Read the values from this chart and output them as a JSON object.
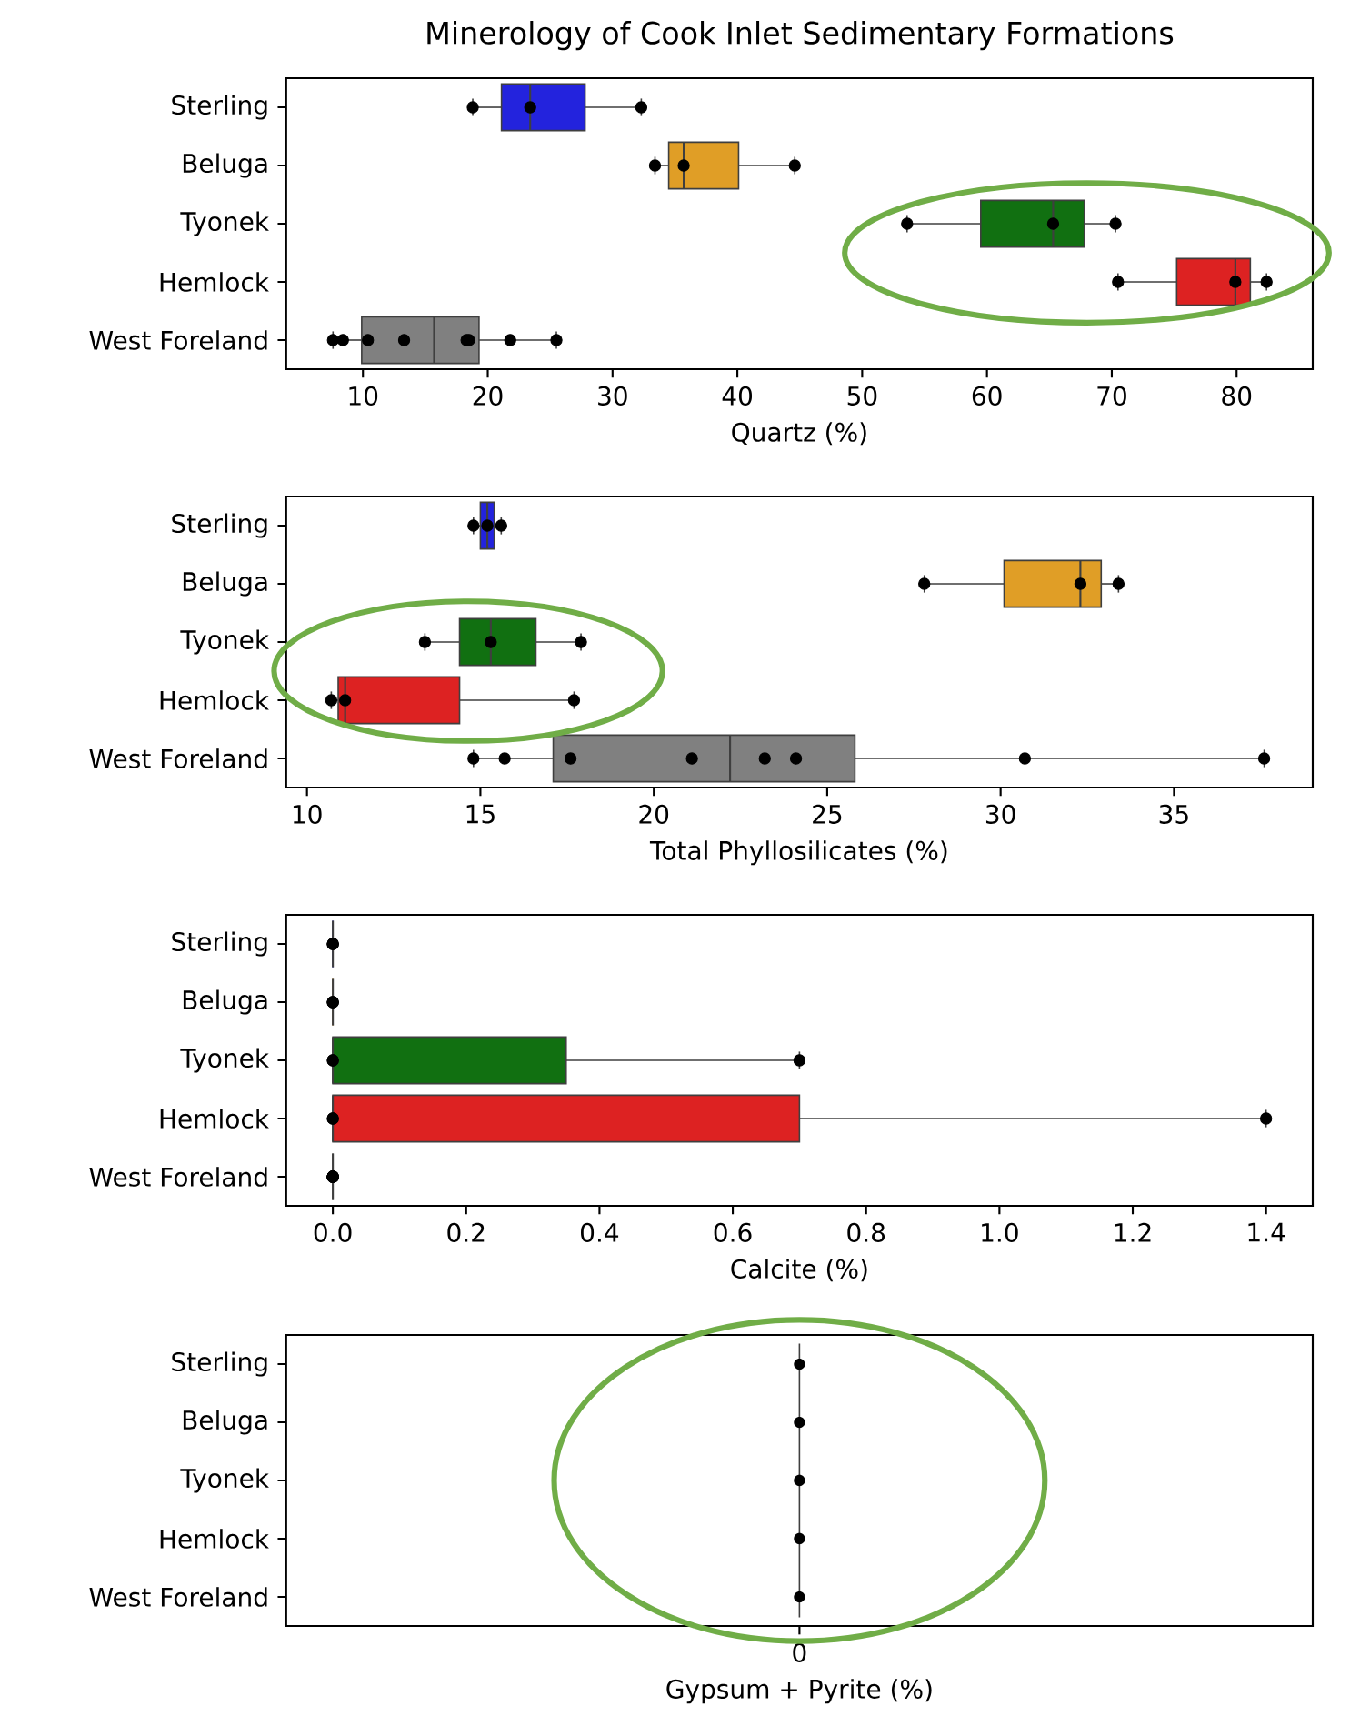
{
  "chart_data": [
    {
      "type": "box",
      "title": "Minerology of Cook Inlet Sedimentary Formations",
      "xlabel": "Quartz (%)",
      "orientation": "horizontal",
      "categories": [
        "Sterling",
        "Beluga",
        "Tyonek",
        "Hemlock",
        "West Foreland"
      ],
      "xlim": [
        3.85,
        86.1
      ],
      "xticks": [
        10,
        20,
        30,
        40,
        50,
        60,
        70,
        80
      ],
      "series": [
        {
          "colors": [
            "#2323dd",
            "#e09e26",
            "#117011",
            "#dd2222",
            "#808080"
          ],
          "boxes": [
            {
              "low": 18.8,
              "q1": 21.1,
              "median": 23.4,
              "q3": 27.8,
              "high": 32.3
            },
            {
              "low": 33.4,
              "q1": 34.5,
              "median": 35.7,
              "q3": 40.1,
              "high": 44.6
            },
            {
              "low": 53.6,
              "q1": 59.5,
              "median": 65.3,
              "q3": 67.8,
              "high": 70.3
            },
            {
              "low": 70.5,
              "q1": 75.2,
              "median": 79.9,
              "q3": 81.1,
              "high": 82.4
            },
            {
              "low": 7.6,
              "q1": 9.9,
              "median": 15.7,
              "q3": 19.3,
              "high": 25.5
            }
          ]
        },
        {
          "type": "scatter",
          "color": "#000000",
          "x": [
            "Sterling",
            "Sterling",
            "Sterling",
            "Beluga",
            "Beluga",
            "Beluga",
            "Tyonek",
            "Tyonek",
            "Tyonek",
            "Hemlock",
            "Hemlock",
            "Hemlock",
            "West Foreland",
            "West Foreland",
            "West Foreland",
            "West Foreland",
            "West Foreland",
            "West Foreland",
            "West Foreland",
            "West Foreland"
          ],
          "values": [
            18.8,
            23.4,
            32.3,
            33.4,
            35.7,
            44.6,
            53.6,
            65.3,
            70.3,
            70.5,
            79.9,
            82.4,
            7.6,
            8.4,
            10.4,
            13.3,
            18.3,
            18.5,
            21.8,
            25.5
          ]
        }
      ]
    },
    {
      "type": "box",
      "xlabel": "Total Phyllosilicates (%)",
      "orientation": "horizontal",
      "categories": [
        "Sterling",
        "Beluga",
        "Tyonek",
        "Hemlock",
        "West Foreland"
      ],
      "xlim": [
        9.4,
        39.0
      ],
      "xticks": [
        10,
        15,
        20,
        25,
        30,
        35
      ],
      "series": [
        {
          "colors": [
            "#2323dd",
            "#e09e26",
            "#117011",
            "#dd2222",
            "#808080"
          ],
          "boxes": [
            {
              "low": 14.8,
              "q1": 15.0,
              "median": 15.2,
              "q3": 15.4,
              "high": 15.6
            },
            {
              "low": 27.8,
              "q1": 30.1,
              "median": 32.3,
              "q3": 32.9,
              "high": 33.4
            },
            {
              "low": 13.4,
              "q1": 14.4,
              "median": 15.3,
              "q3": 16.6,
              "high": 17.9
            },
            {
              "low": 10.7,
              "q1": 10.9,
              "median": 11.1,
              "q3": 14.4,
              "high": 17.7
            },
            {
              "low": 14.8,
              "q1": 17.1,
              "median": 22.2,
              "q3": 25.8,
              "high": 37.6
            }
          ]
        },
        {
          "type": "scatter",
          "color": "#000000",
          "x": [
            "Sterling",
            "Sterling",
            "Sterling",
            "Beluga",
            "Beluga",
            "Beluga",
            "Tyonek",
            "Tyonek",
            "Tyonek",
            "Hemlock",
            "Hemlock",
            "Hemlock",
            "West Foreland",
            "West Foreland",
            "West Foreland",
            "West Foreland",
            "West Foreland",
            "West Foreland",
            "West Foreland",
            "West Foreland"
          ],
          "values": [
            14.8,
            15.2,
            15.6,
            27.8,
            32.3,
            33.4,
            13.4,
            15.3,
            17.9,
            10.7,
            11.1,
            17.7,
            14.8,
            15.7,
            17.6,
            21.1,
            23.2,
            24.1,
            30.7,
            37.6
          ]
        }
      ]
    },
    {
      "type": "box",
      "xlabel": "Calcite (%)",
      "orientation": "horizontal",
      "categories": [
        "Sterling",
        "Beluga",
        "Tyonek",
        "Hemlock",
        "West Foreland"
      ],
      "xlim": [
        -0.07,
        1.47
      ],
      "xticks": [
        {
          "value": 0,
          "label": "0.0"
        },
        0.2,
        0.4,
        0.6,
        0.8,
        {
          "value": 1,
          "label": "1.0"
        },
        1.2,
        1.4
      ],
      "series": [
        {
          "colors": [
            "#2323dd",
            "#e09e26",
            "#117011",
            "#dd2222",
            "#808080"
          ],
          "boxes": [
            {
              "low": 0,
              "q1": 0,
              "median": 0,
              "q3": 0,
              "high": 0
            },
            {
              "low": 0,
              "q1": 0,
              "median": 0,
              "q3": 0,
              "high": 0
            },
            {
              "low": 0,
              "q1": 0,
              "median": 0,
              "q3": 0.35,
              "high": 0.7
            },
            {
              "low": 0,
              "q1": 0,
              "median": 0,
              "q3": 0.7,
              "high": 1.4
            },
            {
              "low": 0,
              "q1": 0,
              "median": 0,
              "q3": 0,
              "high": 0
            }
          ]
        },
        {
          "type": "scatter",
          "color": "#000000",
          "x": [
            "Sterling",
            "Sterling",
            "Sterling",
            "Beluga",
            "Beluga",
            "Beluga",
            "Tyonek",
            "Tyonek",
            "Tyonek",
            "Hemlock",
            "Hemlock",
            "Hemlock",
            "West Foreland",
            "West Foreland",
            "West Foreland",
            "West Foreland",
            "West Foreland",
            "West Foreland",
            "West Foreland",
            "West Foreland"
          ],
          "values": [
            0,
            0,
            0,
            0,
            0,
            0,
            0,
            0,
            0.7,
            0,
            0,
            1.4,
            0,
            0,
            0,
            0,
            0,
            0,
            0,
            0
          ]
        }
      ]
    },
    {
      "type": "other",
      "xlabel": "Gypsum + Pyrite (%)",
      "categories": [
        "Sterling",
        "Beluga",
        "Tyonek",
        "Hemlock",
        "West Foreland"
      ],
      "annotations": [
        "0"
      ]
    }
  ]
}
